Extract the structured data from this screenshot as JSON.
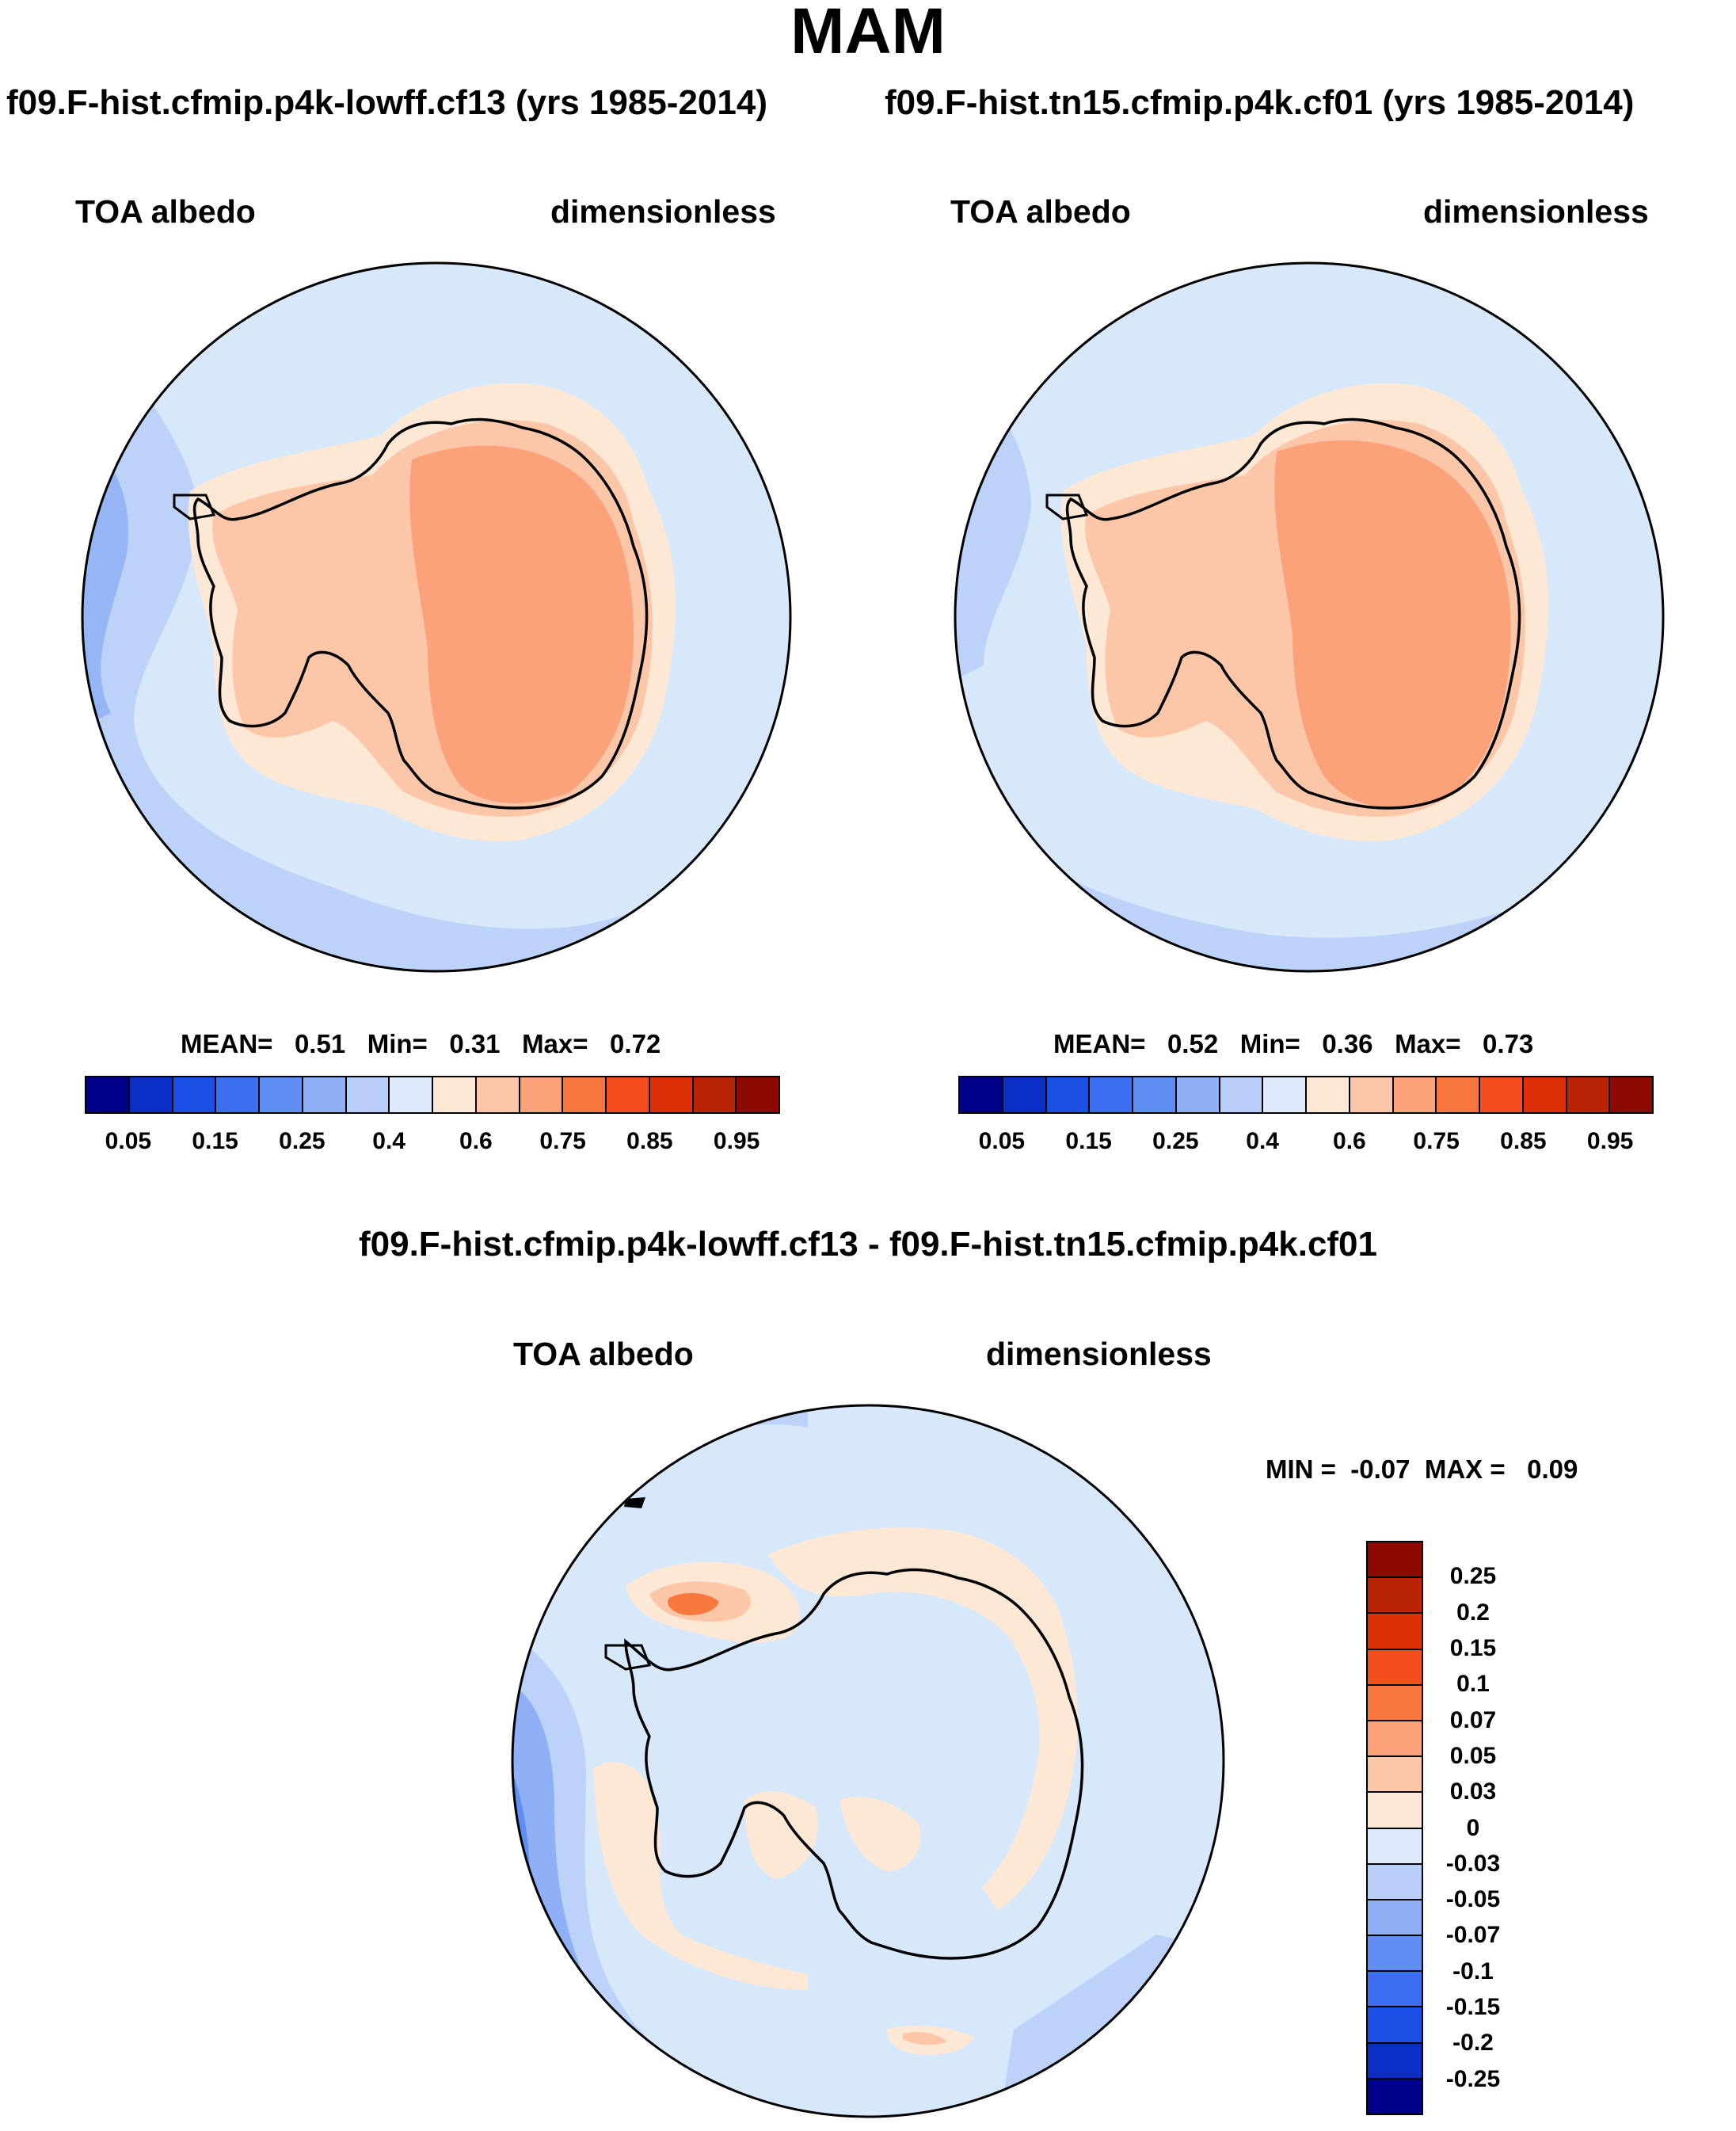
{
  "season_title": "MAM",
  "run_headers": {
    "left": "f09.F-hist.cfmip.p4k-lowff.cf13 (yrs 1985-2014)",
    "right": "f09.F-hist.tn15.cfmip.p4k.cf01 (yrs 1985-2014)"
  },
  "panels": {
    "top_left": {
      "variable": "TOA albedo",
      "units": "dimensionless",
      "mean_label": "MEAN=",
      "mean_value": "0.51",
      "min_label": "Min=",
      "min_value": "0.31",
      "max_label": "Max=",
      "max_value": "0.72"
    },
    "top_right": {
      "variable": "TOA albedo",
      "units": "dimensionless",
      "mean_label": "MEAN=",
      "mean_value": "0.52",
      "min_label": "Min=",
      "min_value": "0.36",
      "max_label": "Max=",
      "max_value": "0.73"
    },
    "bottom": {
      "diff_title": "f09.F-hist.cfmip.p4k-lowff.cf13 - f09.F-hist.tn15.cfmip.p4k.cf01",
      "variable": "TOA albedo",
      "units": "dimensionless",
      "min_label": "MIN =",
      "min_value": "-0.07",
      "max_label": "MAX =",
      "max_value": "0.09"
    }
  },
  "albedo_colorbar": {
    "colors": [
      "#00008b",
      "#0b2fc6",
      "#1b4fe6",
      "#3b6ff0",
      "#5f8ef2",
      "#8fb0f6",
      "#b9cff9",
      "#ddeafb",
      "#fde8d6",
      "#fcc7a8",
      "#fba27a",
      "#f7773f",
      "#f44e1e",
      "#de3008",
      "#b82405",
      "#8c0a02"
    ],
    "tick_labels": [
      "0.05",
      "0.15",
      "0.25",
      "0.4",
      "0.6",
      "0.75",
      "0.85",
      "0.95"
    ]
  },
  "diff_colorbar": {
    "colors_top_to_bottom": [
      "#8c0a02",
      "#b82405",
      "#de3008",
      "#f44e1e",
      "#f7773f",
      "#fba27a",
      "#fcc7a8",
      "#fde8d6",
      "#ddeafb",
      "#b9cff9",
      "#8fb0f6",
      "#5f8ef2",
      "#3b6ff0",
      "#1b4fe6",
      "#0b2fc6",
      "#00008b"
    ],
    "tick_labels_top_to_bottom": [
      "0.25",
      "0.2",
      "0.15",
      "0.1",
      "0.07",
      "0.05",
      "0.03",
      "0",
      "-0.03",
      "-0.05",
      "-0.07",
      "-0.1",
      "-0.15",
      "-0.2",
      "-0.25"
    ]
  },
  "map_colors": {
    "ocean_light": "#d7e8fb",
    "ocean_mid": "#bcd2f9",
    "ocean_dark": "#95b5f5",
    "ice_low": "#fde8d6",
    "ice_mid": "#fcc7a8",
    "ice_high": "#fba27a",
    "diff_peak": "#f7773f",
    "coast": "#000000"
  }
}
